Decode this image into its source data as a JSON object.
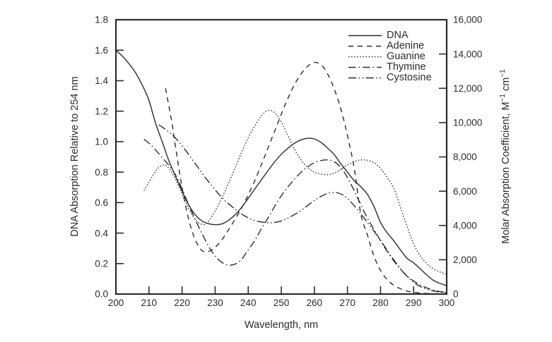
{
  "figure": {
    "background": "#ffffff",
    "ink_color": "#2b2b2d"
  },
  "axes": {
    "x": {
      "label": "Wavelength, nm",
      "min": 200,
      "max": 300,
      "tick_labels": [
        "200",
        "210",
        "220",
        "230",
        "240",
        "250",
        "260",
        "270",
        "280",
        "290",
        "300"
      ]
    },
    "y_left": {
      "label": "DNA Absorption Relative to 254 nm",
      "min": 0.0,
      "max": 1.8,
      "tick_labels": [
        "0.0",
        "0.2",
        "0.4",
        "0.6",
        "0.8",
        "1.0",
        "1.2",
        "1.4",
        "1.6",
        "1.8"
      ]
    },
    "y_right": {
      "label": "Molar Absorption Coefficient, M⁻¹ cm⁻¹",
      "label_parts": [
        {
          "t": "Molar Absorption Coefficient, M"
        },
        {
          "t": "−1",
          "sup": true
        },
        {
          "t": " cm"
        },
        {
          "t": "−1",
          "sup": true
        }
      ],
      "min": 0,
      "max": 16000,
      "tick_labels": [
        "0",
        "2,000",
        "4,000",
        "6,000",
        "8,000",
        "10,000",
        "12,000",
        "14,000",
        "16,000"
      ]
    }
  },
  "legend": {
    "position": "inside-top-right",
    "items": [
      {
        "label": "DNA",
        "style": "solid"
      },
      {
        "label": "Adenine",
        "style": "dashed"
      },
      {
        "label": "Guanine",
        "style": "dotted"
      },
      {
        "label": "Thymine",
        "style": "dash-dot"
      },
      {
        "label": "Cystosine",
        "style": "dash-dot-dot"
      }
    ]
  },
  "chart_data": {
    "type": "line",
    "title": "",
    "xlabel": "Wavelength, nm",
    "ylabel_left": "DNA Absorption Relative to 254 nm",
    "ylabel_right": "Molar Absorption Coefficient, M⁻¹ cm⁻¹",
    "xlim": [
      200,
      300
    ],
    "ylim_left": [
      0,
      1.8
    ],
    "ylim_right": [
      0,
      16000
    ],
    "grid": false,
    "legend_position": "inside top-right",
    "x_unit": "nm",
    "series": [
      {
        "name": "DNA",
        "style": "solid",
        "axis": "left",
        "points": [
          [
            200,
            1.6
          ],
          [
            202,
            1.56
          ],
          [
            204,
            1.51
          ],
          [
            206,
            1.45
          ],
          [
            208,
            1.37
          ],
          [
            210,
            1.27
          ],
          [
            212,
            1.12
          ],
          [
            214,
            1.0
          ],
          [
            216,
            0.875
          ],
          [
            218,
            0.775
          ],
          [
            220,
            0.675
          ],
          [
            222,
            0.585
          ],
          [
            224,
            0.52
          ],
          [
            226,
            0.48
          ],
          [
            228,
            0.462
          ],
          [
            230,
            0.455
          ],
          [
            232,
            0.46
          ],
          [
            234,
            0.483
          ],
          [
            236,
            0.52
          ],
          [
            238,
            0.568
          ],
          [
            240,
            0.628
          ],
          [
            242,
            0.69
          ],
          [
            244,
            0.75
          ],
          [
            246,
            0.81
          ],
          [
            248,
            0.868
          ],
          [
            250,
            0.917
          ],
          [
            252,
            0.957
          ],
          [
            254,
            0.99
          ],
          [
            256,
            1.012
          ],
          [
            258,
            1.022
          ],
          [
            260,
            1.018
          ],
          [
            262,
            0.995
          ],
          [
            264,
            0.958
          ],
          [
            266,
            0.915
          ],
          [
            268,
            0.855
          ],
          [
            270,
            0.8
          ],
          [
            272,
            0.745
          ],
          [
            274,
            0.705
          ],
          [
            276,
            0.655
          ],
          [
            278,
            0.575
          ],
          [
            280,
            0.47
          ],
          [
            282,
            0.402
          ],
          [
            284,
            0.35
          ],
          [
            286,
            0.29
          ],
          [
            288,
            0.235
          ],
          [
            290,
            0.205
          ],
          [
            292,
            0.165
          ],
          [
            294,
            0.125
          ],
          [
            296,
            0.09
          ],
          [
            298,
            0.07
          ],
          [
            300,
            0.055
          ]
        ]
      },
      {
        "name": "Adenine",
        "style": "dashed",
        "axis": "left",
        "points": [
          [
            215,
            1.35
          ],
          [
            216,
            1.235
          ],
          [
            217,
            1.115
          ],
          [
            218,
            0.97
          ],
          [
            219,
            0.83
          ],
          [
            220,
            0.7
          ],
          [
            221,
            0.585
          ],
          [
            222,
            0.49
          ],
          [
            223,
            0.415
          ],
          [
            224,
            0.355
          ],
          [
            225,
            0.315
          ],
          [
            226,
            0.285
          ],
          [
            227,
            0.275
          ],
          [
            228,
            0.278
          ],
          [
            229,
            0.29
          ],
          [
            230,
            0.305
          ],
          [
            232,
            0.355
          ],
          [
            234,
            0.42
          ],
          [
            236,
            0.49
          ],
          [
            238,
            0.565
          ],
          [
            240,
            0.65
          ],
          [
            242,
            0.745
          ],
          [
            244,
            0.85
          ],
          [
            246,
            0.96
          ],
          [
            248,
            1.07
          ],
          [
            250,
            1.18
          ],
          [
            252,
            1.285
          ],
          [
            254,
            1.375
          ],
          [
            256,
            1.445
          ],
          [
            258,
            1.495
          ],
          [
            260,
            1.52
          ],
          [
            262,
            1.505
          ],
          [
            264,
            1.445
          ],
          [
            266,
            1.345
          ],
          [
            268,
            1.215
          ],
          [
            270,
            1.04
          ],
          [
            272,
            0.83
          ],
          [
            274,
            0.53
          ],
          [
            276,
            0.39
          ],
          [
            278,
            0.25
          ],
          [
            280,
            0.155
          ],
          [
            282,
            0.095
          ],
          [
            284,
            0.058
          ],
          [
            286,
            0.035
          ],
          [
            288,
            0.02
          ],
          [
            290,
            0.012
          ],
          [
            293,
            0.005
          ],
          [
            296,
            0.002
          ],
          [
            300,
            0.001
          ]
        ]
      },
      {
        "name": "Guanine",
        "style": "dotted",
        "axis": "left",
        "points": [
          [
            208.5,
            0.68
          ],
          [
            210,
            0.735
          ],
          [
            212,
            0.805
          ],
          [
            213.5,
            0.84
          ],
          [
            215,
            0.845
          ],
          [
            216,
            0.825
          ],
          [
            218,
            0.755
          ],
          [
            220,
            0.655
          ],
          [
            222,
            0.56
          ],
          [
            224,
            0.49
          ],
          [
            225.5,
            0.462
          ],
          [
            227,
            0.458
          ],
          [
            228,
            0.478
          ],
          [
            230,
            0.545
          ],
          [
            232,
            0.63
          ],
          [
            234,
            0.725
          ],
          [
            236,
            0.825
          ],
          [
            238,
            0.93
          ],
          [
            240,
            1.025
          ],
          [
            242,
            1.105
          ],
          [
            244,
            1.17
          ],
          [
            246,
            1.205
          ],
          [
            248,
            1.19
          ],
          [
            250,
            1.13
          ],
          [
            252,
            1.04
          ],
          [
            254,
            0.95
          ],
          [
            256,
            0.878
          ],
          [
            258,
            0.83
          ],
          [
            260,
            0.8
          ],
          [
            262,
            0.787
          ],
          [
            264,
            0.783
          ],
          [
            266,
            0.793
          ],
          [
            268,
            0.818
          ],
          [
            270,
            0.848
          ],
          [
            272,
            0.868
          ],
          [
            274,
            0.88
          ],
          [
            276,
            0.878
          ],
          [
            278,
            0.862
          ],
          [
            280,
            0.825
          ],
          [
            282,
            0.765
          ],
          [
            284,
            0.695
          ],
          [
            286,
            0.57
          ],
          [
            288,
            0.445
          ],
          [
            290,
            0.33
          ],
          [
            292,
            0.25
          ],
          [
            294,
            0.2
          ],
          [
            296,
            0.165
          ],
          [
            298,
            0.145
          ],
          [
            300,
            0.13
          ]
        ]
      },
      {
        "name": "Thymine",
        "style": "dash-dot",
        "axis": "left",
        "points": [
          [
            208.5,
            1.015
          ],
          [
            210,
            0.99
          ],
          [
            212,
            0.945
          ],
          [
            214,
            0.895
          ],
          [
            216,
            0.845
          ],
          [
            218,
            0.782
          ],
          [
            220,
            0.69
          ],
          [
            222,
            0.585
          ],
          [
            224,
            0.488
          ],
          [
            226,
            0.398
          ],
          [
            228,
            0.315
          ],
          [
            230,
            0.25
          ],
          [
            232,
            0.208
          ],
          [
            234,
            0.19
          ],
          [
            236,
            0.196
          ],
          [
            238,
            0.228
          ],
          [
            240,
            0.29
          ],
          [
            242,
            0.352
          ],
          [
            244,
            0.43
          ],
          [
            246,
            0.5
          ],
          [
            248,
            0.575
          ],
          [
            250,
            0.645
          ],
          [
            252,
            0.703
          ],
          [
            254,
            0.755
          ],
          [
            256,
            0.8
          ],
          [
            258,
            0.835
          ],
          [
            260,
            0.862
          ],
          [
            262,
            0.876
          ],
          [
            264,
            0.88
          ],
          [
            266,
            0.868
          ],
          [
            268,
            0.83
          ],
          [
            270,
            0.765
          ],
          [
            272,
            0.68
          ],
          [
            274,
            0.588
          ],
          [
            276,
            0.5
          ],
          [
            278,
            0.425
          ],
          [
            280,
            0.35
          ],
          [
            282,
            0.28
          ],
          [
            284,
            0.218
          ],
          [
            286,
            0.165
          ],
          [
            288,
            0.12
          ],
          [
            290,
            0.085
          ],
          [
            292,
            0.06
          ],
          [
            294,
            0.04
          ],
          [
            296,
            0.026
          ],
          [
            298,
            0.016
          ],
          [
            300,
            0.01
          ]
        ]
      },
      {
        "name": "Cystosine",
        "style": "dash-dot-dot",
        "axis": "left",
        "points": [
          [
            213,
            1.11
          ],
          [
            215,
            1.08
          ],
          [
            217,
            1.045
          ],
          [
            219,
            1.0
          ],
          [
            221,
            0.945
          ],
          [
            223,
            0.885
          ],
          [
            225,
            0.825
          ],
          [
            227,
            0.765
          ],
          [
            229,
            0.71
          ],
          [
            231,
            0.658
          ],
          [
            233,
            0.613
          ],
          [
            235,
            0.575
          ],
          [
            237,
            0.54
          ],
          [
            239,
            0.512
          ],
          [
            241,
            0.49
          ],
          [
            243,
            0.477
          ],
          [
            245,
            0.47
          ],
          [
            247,
            0.468
          ],
          [
            249,
            0.474
          ],
          [
            251,
            0.488
          ],
          [
            253,
            0.51
          ],
          [
            255,
            0.535
          ],
          [
            257,
            0.565
          ],
          [
            259,
            0.598
          ],
          [
            261,
            0.628
          ],
          [
            263,
            0.652
          ],
          [
            265,
            0.665
          ],
          [
            267,
            0.664
          ],
          [
            269,
            0.645
          ],
          [
            271,
            0.605
          ],
          [
            273,
            0.555
          ],
          [
            275,
            0.5
          ],
          [
            277,
            0.443
          ],
          [
            279,
            0.383
          ],
          [
            281,
            0.32
          ],
          [
            283,
            0.255
          ],
          [
            285,
            0.195
          ],
          [
            287,
            0.14
          ],
          [
            289,
            0.096
          ],
          [
            291,
            0.062
          ],
          [
            293,
            0.04
          ],
          [
            295,
            0.026
          ],
          [
            297,
            0.016
          ],
          [
            300,
            0.008
          ]
        ]
      }
    ]
  }
}
